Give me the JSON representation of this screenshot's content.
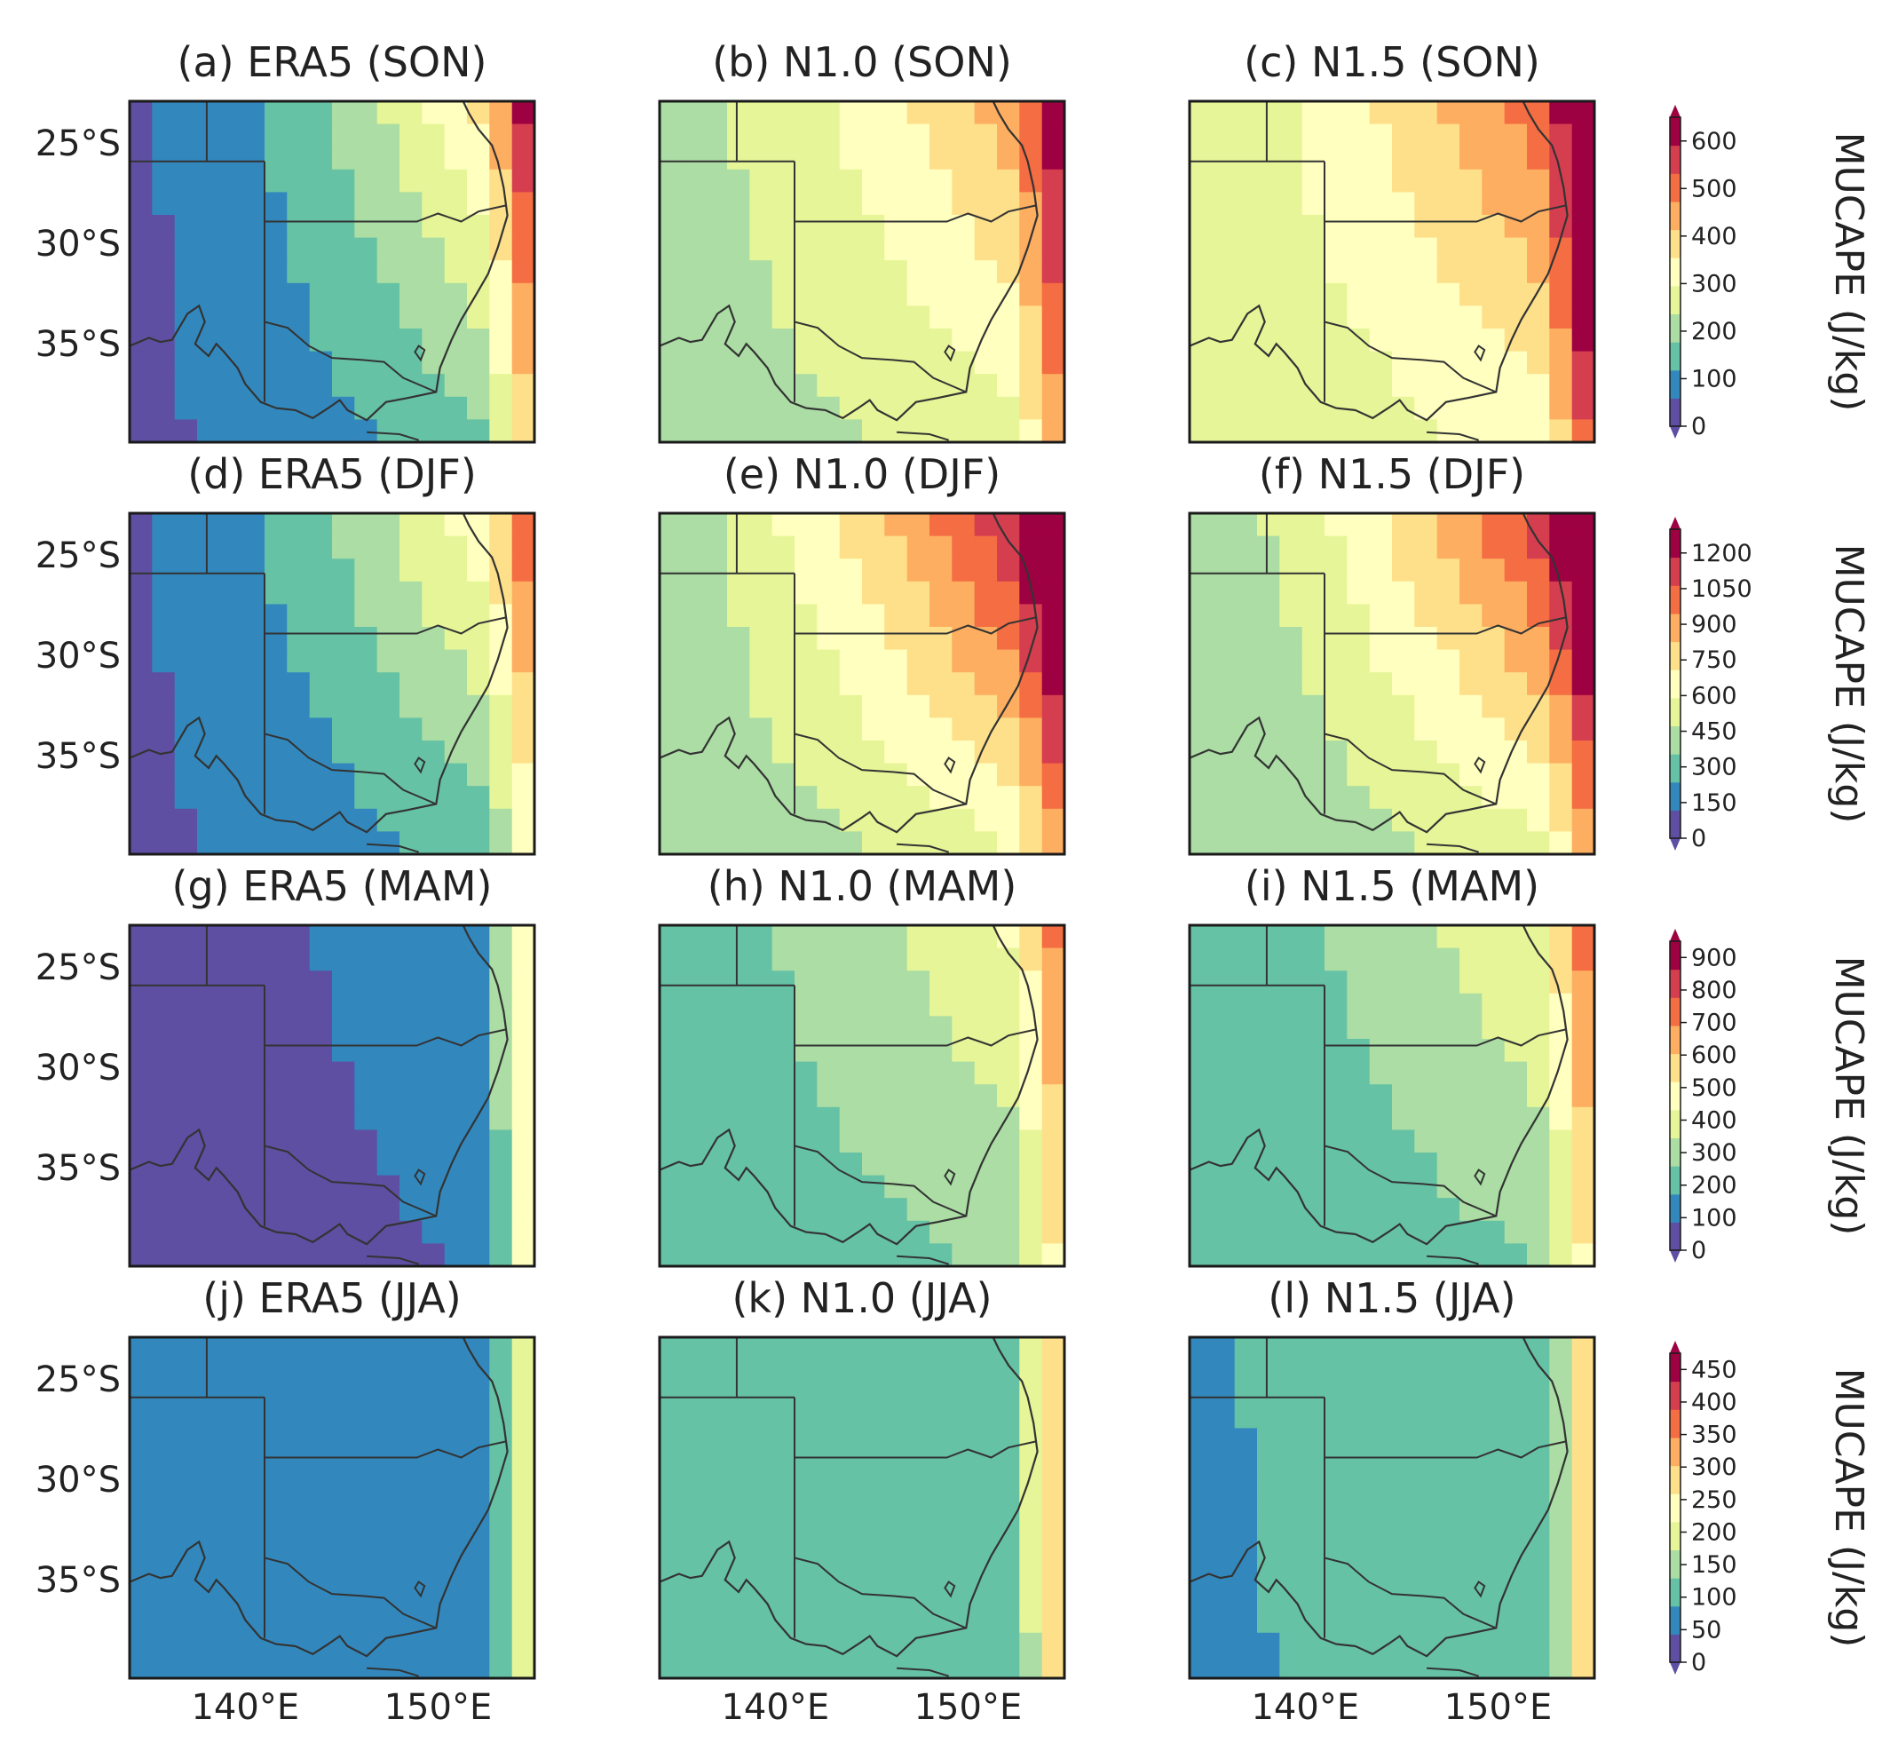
{
  "figure": {
    "colormap": [
      "#5e4fa2",
      "#3288bd",
      "#66c2a5",
      "#abdda4",
      "#e6f598",
      "#ffffbf",
      "#fee08b",
      "#fdae61",
      "#f46d43",
      "#d53e4f",
      "#9e0142"
    ],
    "border_color": "#1a1a1a",
    "land_outline_color": "#333333"
  },
  "chart_data": [
    {
      "type": "heatmap",
      "row": "SON",
      "panels": [
        {
          "label": "(a) ERA5 (SON)",
          "dataset": "ERA5"
        },
        {
          "label": "(b) N1.0 (SON)",
          "dataset": "N1.0"
        },
        {
          "label": "(c) N1.5 (SON)",
          "dataset": "N1.5"
        }
      ],
      "ylabel_ticks": [
        "25°S",
        "30°S",
        "35°S"
      ],
      "colorbar": {
        "label": "MUCAPE (J/kg)",
        "ticks": [
          "0",
          "100",
          "200",
          "300",
          "400",
          "500",
          "600"
        ],
        "range": [
          0,
          650
        ]
      }
    },
    {
      "type": "heatmap",
      "row": "DJF",
      "panels": [
        {
          "label": "(d) ERA5 (DJF)",
          "dataset": "ERA5"
        },
        {
          "label": "(e) N1.0 (DJF)",
          "dataset": "N1.0"
        },
        {
          "label": "(f) N1.5 (DJF)",
          "dataset": "N1.5"
        }
      ],
      "ylabel_ticks": [
        "25°S",
        "30°S",
        "35°S"
      ],
      "colorbar": {
        "label": "MUCAPE (J/kg)",
        "ticks": [
          "0",
          "150",
          "300",
          "450",
          "600",
          "750",
          "900",
          "1050",
          "1200"
        ],
        "range": [
          0,
          1300
        ]
      }
    },
    {
      "type": "heatmap",
      "row": "MAM",
      "panels": [
        {
          "label": "(g) ERA5 (MAM)",
          "dataset": "ERA5"
        },
        {
          "label": "(h) N1.0 (MAM)",
          "dataset": "N1.0"
        },
        {
          "label": "(i) N1.5 (MAM)",
          "dataset": "N1.5"
        }
      ],
      "ylabel_ticks": [
        "25°S",
        "30°S",
        "35°S"
      ],
      "colorbar": {
        "label": "MUCAPE (J/kg)",
        "ticks": [
          "0",
          "100",
          "200",
          "300",
          "400",
          "500",
          "600",
          "700",
          "800",
          "900"
        ],
        "range": [
          0,
          950
        ]
      }
    },
    {
      "type": "heatmap",
      "row": "JJA",
      "panels": [
        {
          "label": "(j) ERA5 (JJA)",
          "dataset": "ERA5"
        },
        {
          "label": "(k) N1.0 (JJA)",
          "dataset": "N1.0"
        },
        {
          "label": "(l) N1.5 (JJA)",
          "dataset": "N1.5"
        }
      ],
      "ylabel_ticks": [
        "25°S",
        "30°S",
        "35°S"
      ],
      "xlabel_ticks": [
        "140°E",
        "150°E"
      ],
      "colorbar": {
        "label": "MUCAPE (J/kg)",
        "ticks": [
          "0",
          "50",
          "100",
          "150",
          "200",
          "250",
          "300",
          "350",
          "400",
          "450"
        ],
        "range": [
          0,
          475
        ]
      }
    }
  ]
}
